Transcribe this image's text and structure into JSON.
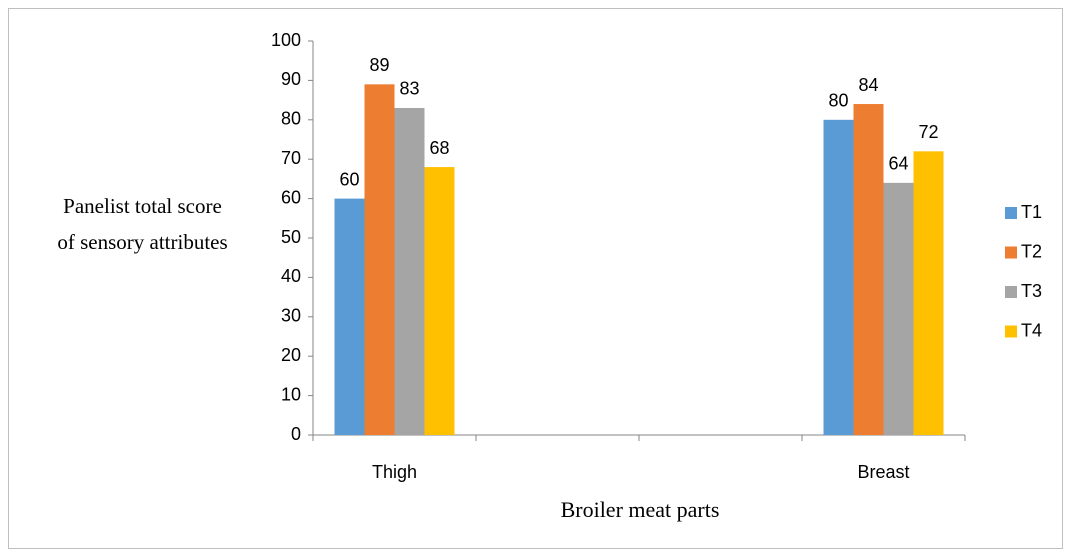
{
  "chart_data": {
    "type": "bar",
    "x_label": "Broiler meat parts",
    "y_label": "Panelist total score of sensory attributes",
    "categories": [
      "Thigh",
      null,
      null,
      "Breast"
    ],
    "series": [
      {
        "name": "T1",
        "color": "#5b9bd5",
        "values": [
          60,
          null,
          null,
          80
        ]
      },
      {
        "name": "T2",
        "color": "#ed7d31",
        "values": [
          89,
          null,
          null,
          84
        ]
      },
      {
        "name": "T3",
        "color": "#a5a5a5",
        "values": [
          83,
          null,
          null,
          64
        ]
      },
      {
        "name": "T4",
        "color": "#ffc000",
        "values": [
          68,
          null,
          null,
          72
        ]
      }
    ],
    "ylim": [
      0,
      100
    ],
    "yticks": [
      0,
      10,
      20,
      30,
      40,
      50,
      60,
      70,
      80,
      90,
      100
    ],
    "legend": "right"
  }
}
